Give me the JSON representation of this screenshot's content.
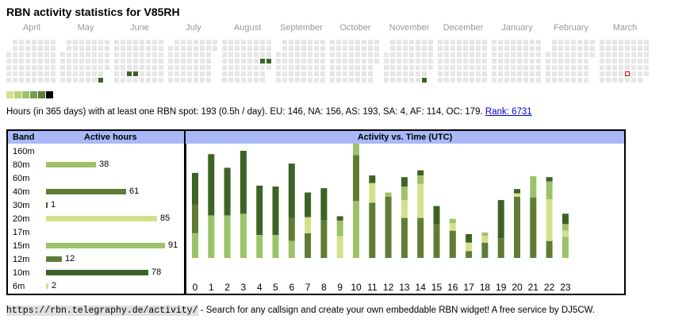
{
  "title": "RBN activity statistics for V85RH",
  "months": [
    "April",
    "May",
    "June",
    "July",
    "August",
    "September",
    "October",
    "November",
    "December",
    "January",
    "February",
    "March"
  ],
  "colors": {
    "empty": "#e6e6e6",
    "light": "#d4e08a",
    "mid": "#9dc26a",
    "dark": "#5e7c36",
    "darkest": "#3d6226",
    "black": "#000000",
    "header": "#a9b9f8",
    "today_border": "#cc0000"
  },
  "legend_colors": [
    "#d4e08a",
    "#b6d07a",
    "#9dc26a",
    "#7a9e4e",
    "#5e7c36",
    "#000000"
  ],
  "active_cells": [
    {
      "month": 1,
      "week": 6,
      "day": 6,
      "level": "darkest"
    },
    {
      "month": 1,
      "week": 7,
      "day": 6,
      "level": "darkest"
    },
    {
      "month": 2,
      "week": 2,
      "day": 5,
      "level": "darkest"
    },
    {
      "month": 2,
      "week": 3,
      "day": 5,
      "level": "darkest"
    },
    {
      "month": 4,
      "week": 6,
      "day": 3,
      "level": "darkest"
    },
    {
      "month": 4,
      "week": 7,
      "day": 3,
      "level": "darkest"
    },
    {
      "month": 7,
      "week": 6,
      "day": 6,
      "level": "darkest"
    },
    {
      "month": 7,
      "week": 7,
      "day": 6,
      "level": "darkest"
    },
    {
      "month": 10,
      "week": 7,
      "day": 5,
      "level": "darkest"
    },
    {
      "month": 10,
      "week": 8,
      "day": 5,
      "level": "darkest"
    },
    {
      "month": 11,
      "week": 4,
      "day": 5,
      "level": "today"
    }
  ],
  "summary": {
    "text": "Hours (in 365 days) with at least one RBN spot: 193 (0.5h / day). EU: 146, NA: 156, AS: 193, SA: 4, AF: 114, OC: 179.",
    "rank_link": "Rank: 6731"
  },
  "band_table": {
    "header_band": "Band",
    "header_hours": "Active hours",
    "rows": [
      {
        "band": "160m",
        "hours": null,
        "value_label": "",
        "color": "#d4e08a"
      },
      {
        "band": "80m",
        "hours": 38,
        "value_label": "38",
        "color": "#9dc26a"
      },
      {
        "band": "60m",
        "hours": null,
        "value_label": "",
        "color": "#d4e08a"
      },
      {
        "band": "40m",
        "hours": 61,
        "value_label": "61",
        "color": "#5e7c36"
      },
      {
        "band": "30m",
        "hours": 1,
        "value_label": "1",
        "color": "#3d6226"
      },
      {
        "band": "20m",
        "hours": 85,
        "value_label": "85",
        "color": "#d4e08a"
      },
      {
        "band": "17m",
        "hours": null,
        "value_label": "",
        "color": "#d4e08a"
      },
      {
        "band": "15m",
        "hours": 91,
        "value_label": "91",
        "color": "#9dc26a"
      },
      {
        "band": "12m",
        "hours": 12,
        "value_label": "12",
        "color": "#5e7c36"
      },
      {
        "band": "10m",
        "hours": 78,
        "value_label": "78",
        "color": "#3d6226"
      },
      {
        "band": "6m",
        "hours": 2,
        "value_label": "2",
        "color": "#d4e08a"
      }
    ]
  },
  "chart_data": {
    "type": "bar",
    "title": "Activity vs. Time (UTC)",
    "stacked": true,
    "categories": [
      "0",
      "1",
      "2",
      "3",
      "4",
      "5",
      "6",
      "7",
      "8",
      "9",
      "10",
      "11",
      "12",
      "13",
      "14",
      "15",
      "16",
      "17",
      "18",
      "19",
      "20",
      "21",
      "22",
      "23"
    ],
    "series": [
      {
        "color": "#9dc26a",
        "values": [
          0.29,
          0.5,
          0.5,
          0.52,
          0.27,
          0.27,
          0.2,
          0,
          0,
          0,
          0.67,
          0,
          0,
          0,
          0,
          0,
          0,
          0,
          0,
          0,
          0,
          0,
          0,
          0.25
        ]
      },
      {
        "color": "#5e7c36",
        "values": [
          0.34,
          0,
          0,
          0,
          0,
          0,
          0.27,
          0.29,
          0.44,
          0,
          0.54,
          0.65,
          0.72,
          0.47,
          0.47,
          0.4,
          0.32,
          0.08,
          0.18,
          0.23,
          0.72,
          0.71,
          0.2,
          0
        ]
      },
      {
        "color": "#d4e08a",
        "values": [
          0,
          0,
          0,
          0,
          0,
          0,
          0,
          0.19,
          0,
          0.26,
          0,
          0.23,
          0,
          0.21,
          0.4,
          0,
          0.09,
          0.1,
          0.08,
          0,
          0.04,
          0,
          0.49,
          0.07
        ]
      },
      {
        "color": "#9dc26a",
        "values": [
          0,
          0,
          0,
          0,
          0,
          0,
          0,
          0,
          0,
          0.18,
          0.22,
          0,
          0.05,
          0.16,
          0.1,
          0,
          0.05,
          0,
          0.04,
          0,
          0,
          0.25,
          0.21,
          0.08
        ]
      },
      {
        "color": "#3d6226",
        "values": [
          0.37,
          0.72,
          0.56,
          0.74,
          0.58,
          0.57,
          0.64,
          0.29,
          0.38,
          0.05,
          0.05,
          0.09,
          0,
          0.11,
          0.06,
          0.21,
          0,
          0.1,
          0,
          0.45,
          0.05,
          0,
          0.05,
          0.12
        ]
      }
    ],
    "ymax": 1.4
  },
  "footer": {
    "url": "https://rbn.telegraphy.de/activity/",
    "text": " - Search for any callsign and create your own embeddable RBN widget! A free service by DJ5CW."
  }
}
